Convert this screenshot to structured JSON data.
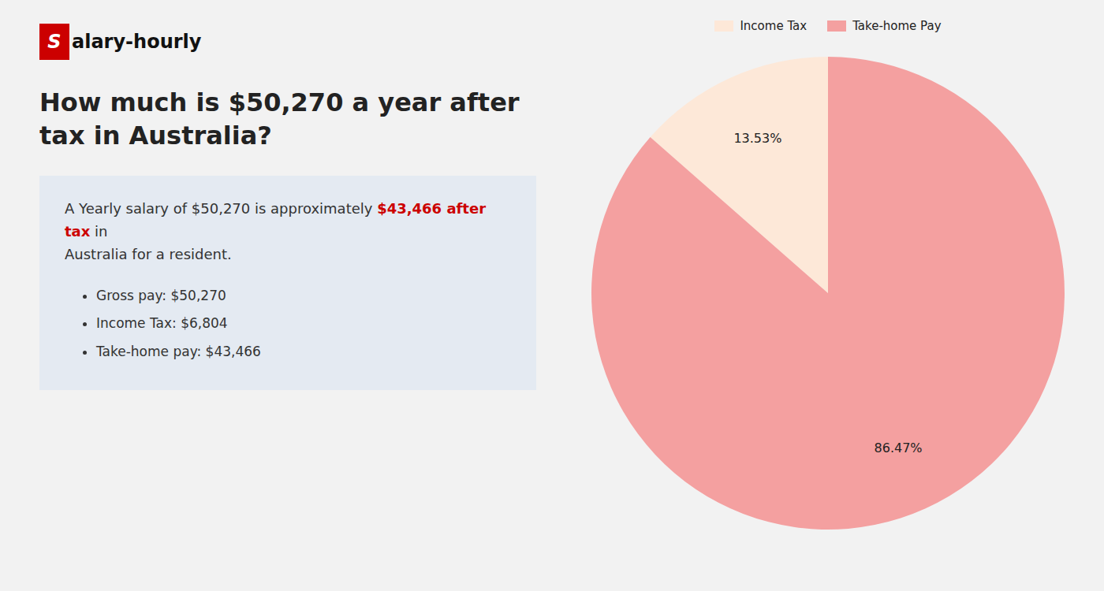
{
  "chart_data": {
    "type": "pie",
    "title": "How much is $50,270 a year after tax in Australia?",
    "annotations": [
      {
        "text": "S",
        "color": "#cc0000"
      },
      {
        "text": "alary-hourly"
      },
      {
        "text": "A Yearly salary of $50,270 is approximately "
      },
      {
        "text": "$43,466 after tax",
        "color": "#cc0000"
      },
      {
        "text": " in"
      },
      {
        "text": "Australia for a resident."
      },
      {
        "text": "Gross pay: $50,270"
      },
      {
        "text": "Income Tax: $6,804"
      },
      {
        "text": "Take-home pay: $43,466"
      }
    ],
    "categories": [
      "Income Tax",
      "Take-home Pay"
    ],
    "values": [
      13.53,
      86.47
    ],
    "value_labels": [
      "13.53%",
      "86.47%"
    ],
    "colors": [
      "#fde8d8",
      "#f4a0a0"
    ],
    "data_labels": true,
    "legend": "top"
  }
}
